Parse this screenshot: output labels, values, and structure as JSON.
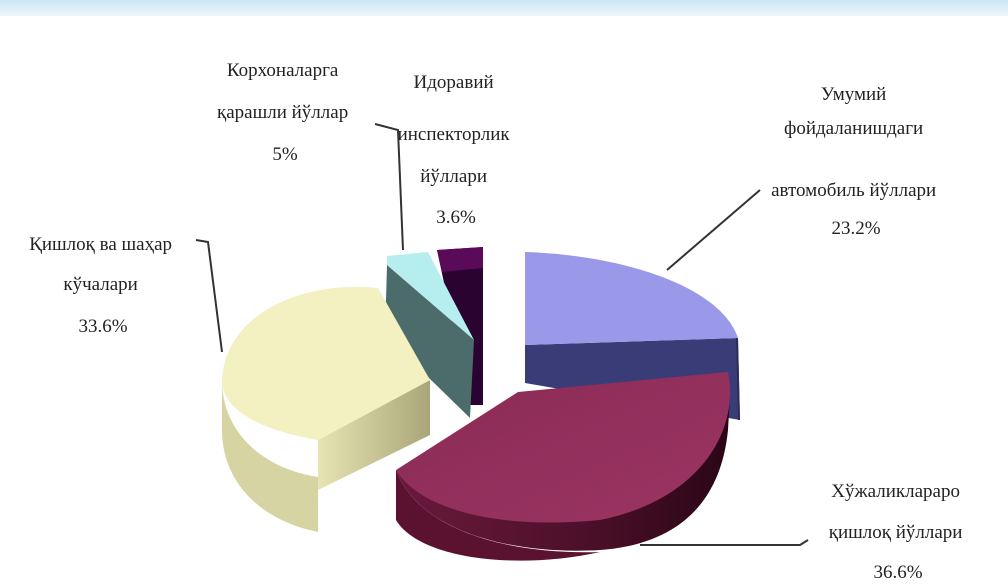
{
  "chart_data": {
    "type": "pie",
    "title": "",
    "units": "%",
    "slices": [
      {
        "key": "umumiy",
        "label_lines": [
          "Умумий",
          "фойдаланишдаги",
          "автомобиль йўллари"
        ],
        "value_text": "23.2%",
        "value": 23.2,
        "color": "#9a98e8"
      },
      {
        "key": "khujaliklararo",
        "label_lines": [
          "Хўжаликлараро",
          "қишлоқ йўллари"
        ],
        "value_text": "36.6%",
        "value": 36.6,
        "color": "#8e2a55"
      },
      {
        "key": "qishloq",
        "label_lines": [
          "Қишлоқ ва шаҳар",
          "кўчалари"
        ],
        "value_text": "33.6%",
        "value": 33.6,
        "color": "#f3f0c2"
      },
      {
        "key": "korxonalarga",
        "label_lines": [
          "Корхоналарга",
          "қарашли йўллар"
        ],
        "value_text": "5%",
        "value": 5,
        "color": "#b6eef0"
      },
      {
        "key": "idoraviy",
        "label_lines": [
          "Идоравий",
          "инспекторлик",
          "йўллари"
        ],
        "value_text": "3.6%",
        "value": 3.6,
        "color": "#5b0a5a"
      }
    ]
  }
}
